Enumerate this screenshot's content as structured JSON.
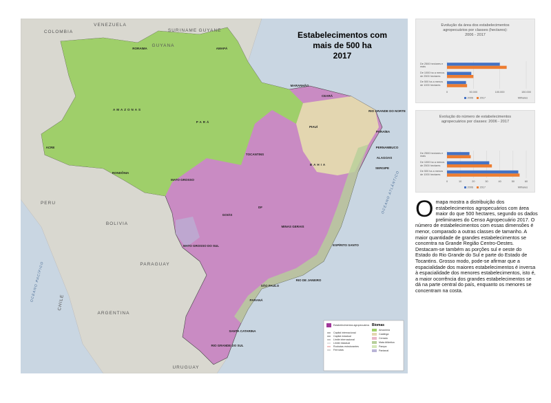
{
  "map": {
    "title": [
      "Estabelecimentos com",
      "mais de 500 ha",
      "2017"
    ],
    "countries": [
      "COLOMBIA",
      "VENEZUELA",
      "GUYANA",
      "SURINAME",
      "GUYANE",
      "PERU",
      "BOLIVIA",
      "PARAGUAY",
      "ARGENTINA",
      "URUGUAY",
      "CHILE"
    ],
    "oceans": [
      "OCEANO PACÍFICO",
      "OCEANO ATLÂNTICO"
    ],
    "states": [
      "RORAIMA",
      "AMAPÁ",
      "AMAZONAS",
      "PARÁ",
      "ACRE",
      "RONDÔNIA",
      "MATO GROSSO",
      "TOCANTINS",
      "MARANHÃO",
      "PIAUÍ",
      "CEARÁ",
      "RIO GRANDE DO NORTE",
      "PARAÍBA",
      "PERNAMBUCO",
      "ALAGOAS",
      "SERGIPE",
      "BAHIA",
      "GOIÁS",
      "DF",
      "MINAS GERAIS",
      "MATO GROSSO DO SUL",
      "ESPÍRITO SANTO",
      "RIO DE JANEIRO",
      "SÃO PAULO",
      "PARANÁ",
      "SANTA CATARINA",
      "RIO GRANDE DO SUL"
    ],
    "legend": {
      "items": [
        "Estabelecimentos agropecuários",
        "Capital internacional",
        "Capital estadual",
        "Limite internacional",
        "Limite estadual",
        "Rodovias estruturantes",
        "Ferrovias"
      ],
      "biomes_title": "Biomas",
      "biomes": [
        "Amazônia",
        "Caatinga",
        "Cerrado",
        "Mata Atlântica",
        "Pampa",
        "Pantanal"
      ]
    }
  },
  "charts": [
    {
      "type": "bar",
      "title": [
        "Evolução da área dos estabelecimentos",
        "agropecuários por classes (hectares):",
        "2006 - 2017"
      ],
      "categories": [
        "De 2500 hectares e mais",
        "De 1000 ha a menos de 2500 hectares",
        "De 500 ha a menos de 1000 hectares"
      ],
      "series": [
        {
          "name": "2006",
          "color": "#4472c4",
          "values": [
            100000,
            46000,
            36000
          ]
        },
        {
          "name": "2017",
          "color": "#ed7d31",
          "values": [
            113000,
            50000,
            38000
          ]
        }
      ],
      "xlim": [
        0,
        150000
      ],
      "xticks": [
        0,
        {
          "value": 50000,
          "label": "50.000"
        },
        {
          "value": 100000,
          "label": "100.000"
        },
        {
          "value": 150000,
          "label": "150.000"
        }
      ],
      "unit": "Milhares"
    },
    {
      "type": "bar",
      "title": [
        "Evolução do número de estabelecimentos",
        "agropecuários por classes: 2006 - 2017"
      ],
      "categories": [
        "De 2500 hectares e mais",
        "De 1000 ha a menos de 2500 hectares",
        "De 500 ha a menos de 1000 hectares"
      ],
      "series": [
        {
          "name": "2006",
          "color": "#4472c4",
          "values": [
            17,
            32,
            54
          ]
        },
        {
          "name": "2017",
          "color": "#ed7d31",
          "values": [
            18,
            34,
            55
          ]
        }
      ],
      "xlim": [
        0,
        60
      ],
      "xticks": [
        0,
        10,
        20,
        30,
        40,
        50,
        60
      ],
      "unit": "Milhares"
    }
  ],
  "text": {
    "drop_cap": "O",
    "body": "mapa mostra a distribuição dos estabelecimentos agropecuários com área maior do que 500 hectares, segundo os dados preliminares do Censo Agropecuário 2017. O número de estabelecimentos com essas dimensões é menor, comparado a outras classes de tamanho. A maior quantidade de grandes estabelecimentos se concentra na Grande Região Centro-Oestes. Destacam-se também as porções sul e oeste do Estado do Rio Grande do Sul e parte do Estado de Tocantins. Grosso modo, pode-se afirmar que a espacialidade dos maiores estabelecimentos é inversa à espacialidade dos menores estabelecimentos, isto é, a maior ocorrência dos grandes estabelecimentos se dá na parte central do país, enquanto os menores se concentram na costa."
  }
}
